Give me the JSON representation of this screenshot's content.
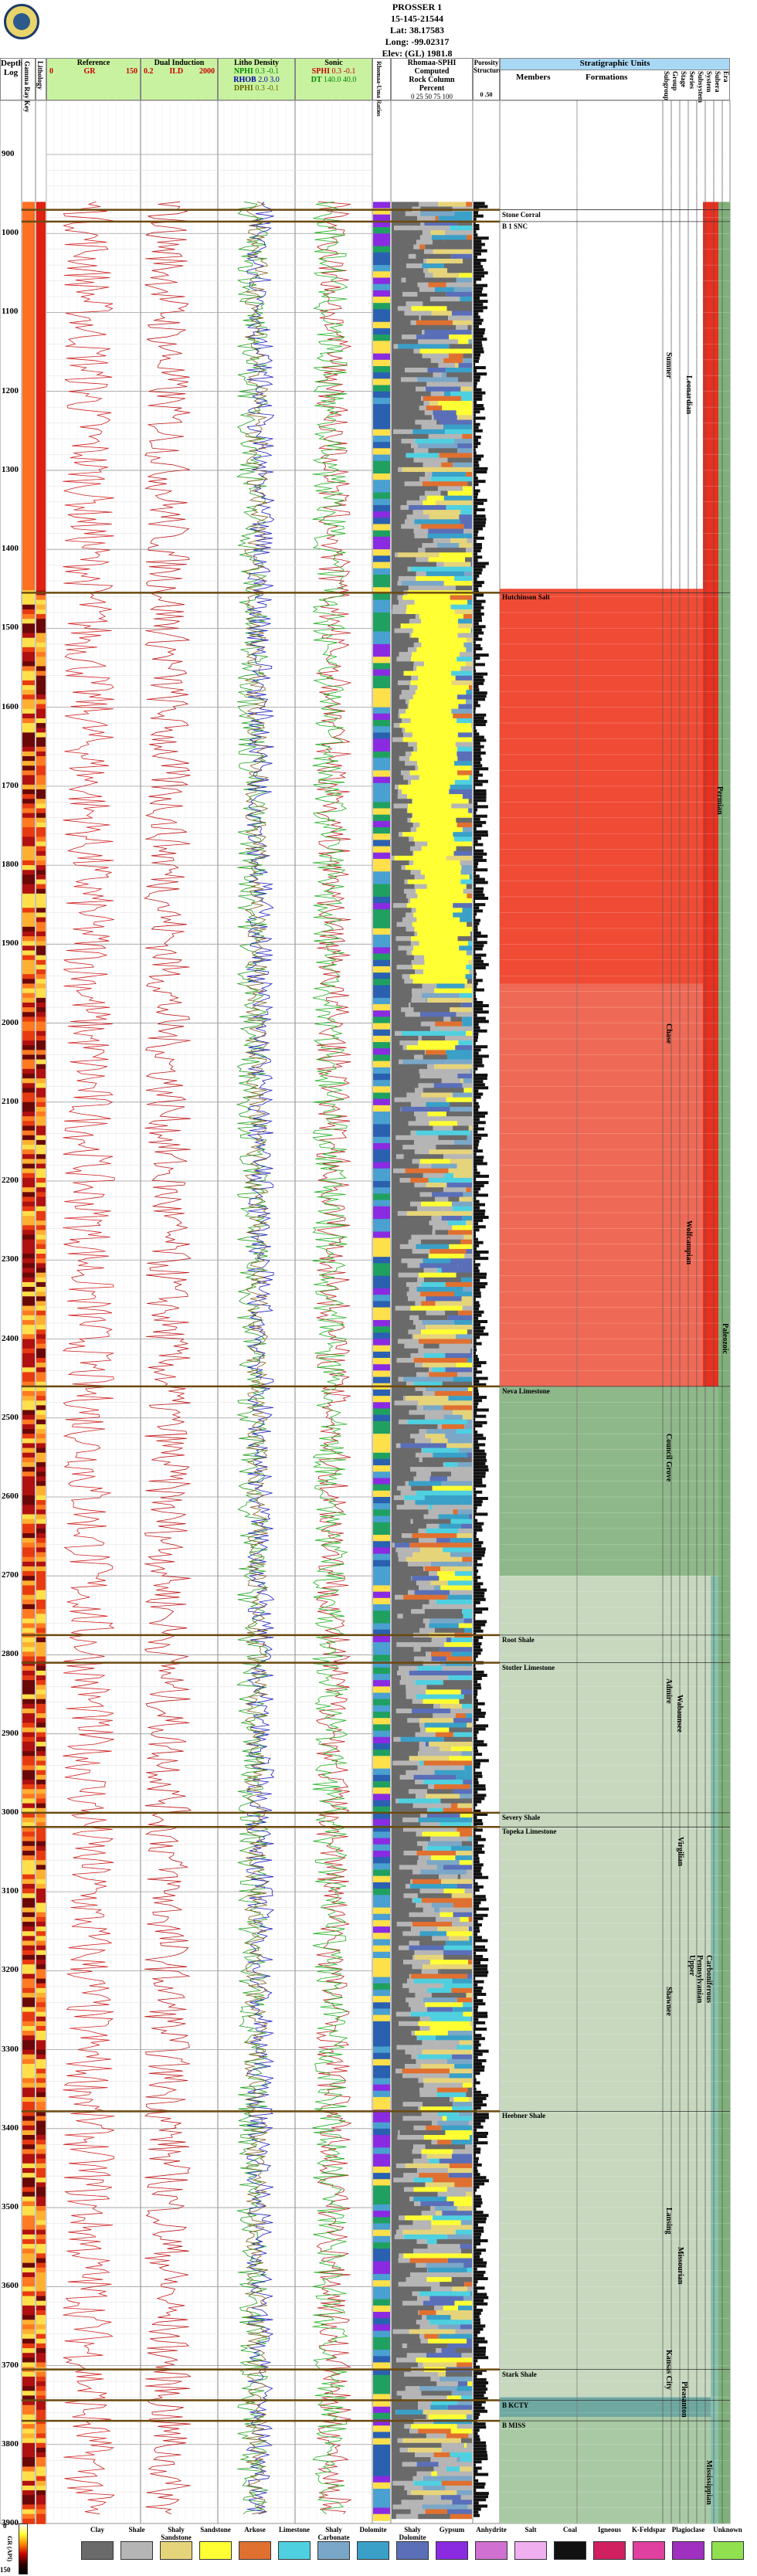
{
  "well": {
    "name": "PROSSER 1",
    "api": "15-145-21544",
    "lat": "Lat: 38.17583",
    "long": "Long: -99.02317",
    "elev": "Elev: (GL) 1981.8"
  },
  "tracks": {
    "depth_title": "Depth",
    "depth_unit": "Log",
    "gr_key": "Gamma Ray Key",
    "lithology": "Lithology",
    "reference": {
      "title": "Reference",
      "curve": "GR",
      "min": "0",
      "max": "150"
    },
    "induction": {
      "title": "Dual Induction",
      "curve": "ILD",
      "min": "0.2",
      "max": "2000"
    },
    "litho": {
      "title": "Litho Density",
      "c1": "NPHI",
      "c2": "RHOB",
      "c3": "DPHI",
      "r1": "0.3  -0.1",
      "r2": "2.0  3.0",
      "r3": "0.3  -0.1"
    },
    "sonic": {
      "title": "Sonic",
      "c1": "SPHI",
      "c2": "DT",
      "r1": "0.3  -0.1",
      "r2": "140.0  40.0"
    },
    "ratio": "Rhomaa-Uma Ratios",
    "rhomaa": {
      "title": "Rhomaa-SPHI",
      "sub1": "Computed",
      "sub2": "Rock Column",
      "sub3": "Percent",
      "scale": "0  25  50  75  100"
    },
    "porosity": "Porosity Structure",
    "porosity_scale": "0   .50"
  },
  "strat": {
    "title": "Stratigraphic Units",
    "members": "Members",
    "formations": "Formations",
    "cols": [
      "Subgroup",
      "Group",
      "Stage",
      "Series",
      "Subsystem",
      "System",
      "Subera",
      "Era"
    ]
  },
  "depths": [
    "900",
    "1000",
    "1100",
    "1200",
    "1300",
    "1400",
    "1500",
    "1600",
    "1700",
    "1800",
    "1900",
    "2000",
    "2100",
    "2200",
    "2300",
    "2400",
    "2500",
    "2600",
    "2700",
    "2800",
    "2900",
    "3000",
    "3100",
    "3200",
    "3300",
    "3400",
    "3500",
    "3600",
    "3700",
    "3800",
    "3900"
  ],
  "members": [
    {
      "label": "Stone Corral",
      "depth": "970"
    },
    {
      "label": "B 1 SNC",
      "depth": "985"
    },
    {
      "label": "Hutchinson Salt",
      "depth": "1455"
    },
    {
      "label": "Neva Limestone",
      "depth": "2460"
    },
    {
      "label": "Root Shale",
      "depth": "2775"
    },
    {
      "label": "Stotler Limestone",
      "depth": "2810"
    },
    {
      "label": "Severy Shale",
      "depth": "3000"
    },
    {
      "label": "Topeka Limestone",
      "depth": "3018"
    },
    {
      "label": "Heebner Shale",
      "depth": "3378"
    },
    {
      "label": "Stark Shale",
      "depth": "3705"
    },
    {
      "label": "B KCTY",
      "depth": "3744"
    },
    {
      "label": "B MISS",
      "depth": "3770"
    }
  ],
  "vertical_units": [
    {
      "label": "Sumner",
      "col": "group"
    },
    {
      "label": "Leonardian",
      "col": "stage"
    },
    {
      "label": "Permian",
      "col": "system"
    },
    {
      "label": "Chase",
      "col": "group"
    },
    {
      "label": "Wolfcampian",
      "col": "stage"
    },
    {
      "label": "Council Grove",
      "col": "group"
    },
    {
      "label": "Admire",
      "col": "group"
    },
    {
      "label": "Wabaunsee",
      "col": "group"
    },
    {
      "label": "Shawnee",
      "col": "group"
    },
    {
      "label": "Virgilian",
      "col": "stage"
    },
    {
      "label": "Upper",
      "col": "series"
    },
    {
      "label": "Pennsylvanian",
      "col": "subsystem"
    },
    {
      "label": "Carboniferous",
      "col": "system"
    },
    {
      "label": "Paleozoic",
      "col": "era"
    },
    {
      "label": "Missourian",
      "col": "stage"
    },
    {
      "label": "Lansing",
      "col": "group"
    },
    {
      "label": "Kansas City",
      "col": "group"
    },
    {
      "label": "Pleasanton",
      "col": "group"
    },
    {
      "label": "Mississippian",
      "col": "subsystem"
    }
  ],
  "legend": [
    {
      "label": "Clay",
      "color": "#6a6a6a"
    },
    {
      "label": "Shale",
      "color": "#b5b5b5"
    },
    {
      "label": "Shaly Sandstone",
      "color": "#e6d47a"
    },
    {
      "label": "Sandstone",
      "color": "#ffff33"
    },
    {
      "label": "Arkose",
      "color": "#e07030"
    },
    {
      "label": "Limestone",
      "color": "#4fd0e0"
    },
    {
      "label": "Shaly Carbonate",
      "color": "#7aa7c7"
    },
    {
      "label": "Dolomite",
      "color": "#3aa0c8"
    },
    {
      "label": "Shaly Dolomite",
      "color": "#5a6fb8"
    },
    {
      "label": "Gypsum",
      "color": "#8a2be2"
    },
    {
      "label": "Anhydrite",
      "color": "#d070d0"
    },
    {
      "label": "Salt",
      "color": "#f0b0f0"
    },
    {
      "label": "Coal",
      "color": "#111111"
    },
    {
      "label": "Igneous",
      "color": "#d02060"
    },
    {
      "label": "K-Feldspar",
      "color": "#e040a0"
    },
    {
      "label": "Plagioclase",
      "color": "#a030c0"
    },
    {
      "label": "Unknown",
      "color": "#90e050"
    }
  ],
  "colorbar": {
    "label": "GR (API)",
    "min": "0",
    "max": "150"
  }
}
